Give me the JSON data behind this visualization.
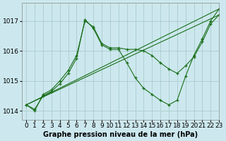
{
  "title": "Graphe pression niveau de la mer (hPa)",
  "bg_color": "#cce8ee",
  "grid_color": "#aacccc",
  "line_color": "#1a6e1a",
  "ylim": [
    1013.7,
    1017.6
  ],
  "xlim": [
    -0.5,
    23
  ],
  "yticks": [
    1014,
    1015,
    1016,
    1017
  ],
  "xticks": [
    0,
    1,
    2,
    3,
    4,
    5,
    6,
    7,
    8,
    9,
    10,
    11,
    12,
    13,
    14,
    15,
    16,
    17,
    18,
    19,
    20,
    21,
    22,
    23
  ],
  "series": [
    {
      "x": [
        0,
        1,
        2,
        3,
        4,
        5,
        6,
        7,
        8,
        9,
        10,
        11,
        12,
        13,
        14,
        15,
        16,
        17,
        18,
        19,
        20,
        21,
        22,
        23
      ],
      "y": [
        1014.2,
        1014.0,
        1014.55,
        1014.7,
        1015.0,
        1015.35,
        1015.85,
        1017.0,
        1016.8,
        1016.25,
        1016.1,
        1016.1,
        1016.05,
        1016.05,
        1016.0,
        1015.85,
        1015.6,
        1015.4,
        1015.25,
        1015.5,
        1015.8,
        1016.3,
        1016.9,
        1017.2
      ],
      "marker": true
    },
    {
      "x": [
        0,
        1,
        2,
        3,
        4,
        5,
        6,
        7,
        8,
        9,
        10,
        11,
        12,
        13,
        14,
        15,
        16,
        17,
        18,
        19,
        20,
        21,
        22,
        23
      ],
      "y": [
        1014.2,
        1014.05,
        1014.5,
        1014.65,
        1014.9,
        1015.25,
        1015.75,
        1017.05,
        1016.75,
        1016.2,
        1016.05,
        1016.05,
        1015.6,
        1015.1,
        1014.75,
        1014.55,
        1014.35,
        1014.2,
        1014.35,
        1015.15,
        1015.85,
        1016.4,
        1017.0,
        1017.4
      ],
      "marker": true
    },
    {
      "x": [
        0,
        23
      ],
      "y": [
        1014.2,
        1017.2
      ],
      "marker": false
    },
    {
      "x": [
        0,
        23
      ],
      "y": [
        1014.2,
        1017.4
      ],
      "marker": false
    }
  ],
  "fontsize_label": 7,
  "fontsize_tick": 6.5
}
